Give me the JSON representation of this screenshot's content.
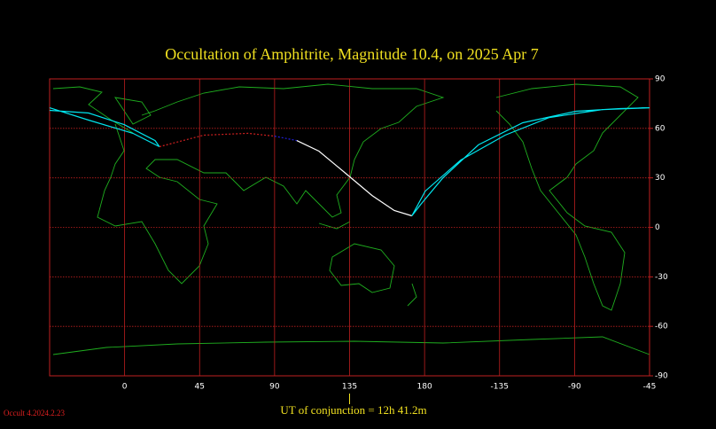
{
  "chart_data": {
    "type": "occultation-map",
    "title": "Occultation  of  Amphitrite,      Magnitude 10.4,   on  2025 Apr  7",
    "footer": "UT of conjunction = 12h 41.2m",
    "version": "Occult 4.2024.2.23",
    "xlim": [
      -45,
      315
    ],
    "ylim": [
      -90,
      90
    ],
    "xticks": [
      0,
      45,
      90,
      135,
      180,
      {
        "value": 225,
        "label": "-135"
      },
      {
        "value": 270,
        "label": "-90"
      },
      {
        "value": 315,
        "label": "-45"
      }
    ],
    "yticks": [
      90,
      60,
      30,
      0,
      -30,
      -60,
      -90
    ],
    "conjunction_lon": 135,
    "grid": true,
    "grid_color": "#c02020",
    "paths": [
      {
        "color": "#00e5ee",
        "dash": false,
        "lon": [
          -45,
          -21.6,
          5,
          20.9,
          18.3,
          -0.3,
          -21.6,
          -45
        ],
        "lat": [
          72.5,
          65,
          57,
          48.9,
          52.6,
          62.3,
          69.3,
          70.9
        ]
      },
      {
        "color": "#d02020",
        "dash": true,
        "lon": [
          20.9,
          47.5,
          74.1,
          90
        ],
        "lat": [
          48.9,
          55.9,
          57,
          55.3
        ]
      },
      {
        "color": "#2020e0",
        "dash": true,
        "lon": [
          90,
          103.3
        ],
        "lat": [
          55.3,
          52.6
        ]
      },
      {
        "color": "#ffffff",
        "dash": false,
        "lon": [
          103.3,
          116.6,
          132.6,
          148.5,
          161.8,
          172.4
        ],
        "lat": [
          52.6,
          46.2,
          32.8,
          19.3,
          10.2,
          7
        ]
      },
      {
        "color": "#00e5ee",
        "dash": false,
        "lon": [
          172.4,
          180.4,
          201.7,
          228.3,
          254.8,
          286.7,
          315,
          297.4,
          270.8,
          238.9,
          212.3,
          191,
          177.8,
          172.4
        ],
        "lat": [
          7,
          22,
          40.8,
          55.9,
          66.6,
          71.4,
          72.5,
          72,
          70.4,
          63.4,
          50,
          30,
          14,
          7
        ]
      }
    ]
  }
}
